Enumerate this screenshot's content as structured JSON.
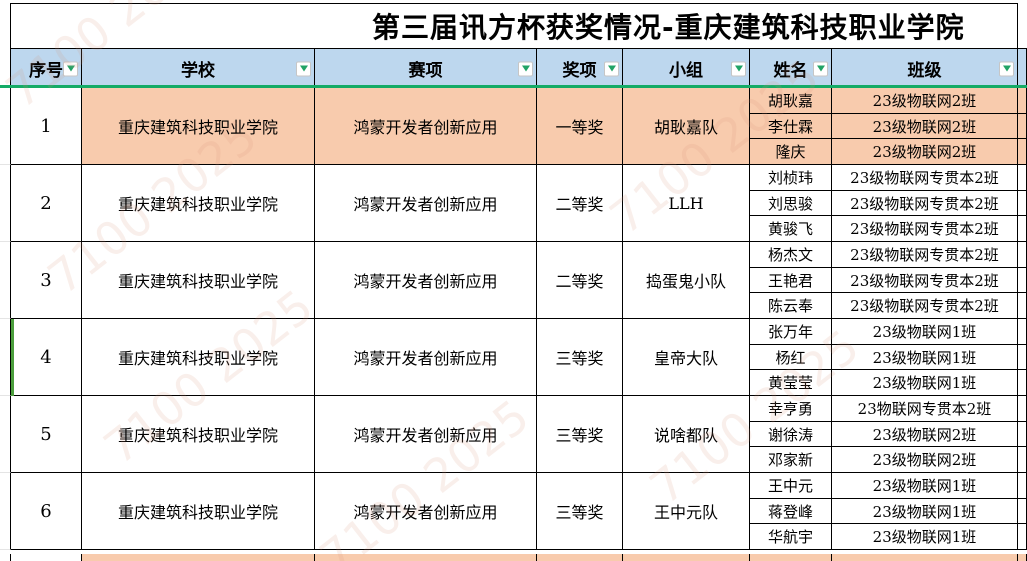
{
  "title": "第三届讯方杯获奖情况-重庆建筑科技职业学院",
  "header": {
    "columns": [
      "序号",
      "学校",
      "赛项",
      "奖项",
      "小组",
      "姓名",
      "班级"
    ]
  },
  "rows": [
    {
      "index": "1",
      "school": "重庆建筑科技职业学院",
      "event": "鸿蒙开发者创新应用",
      "award": "一等奖",
      "group": "胡耿嘉队",
      "highlight": true,
      "members": [
        {
          "name": "胡耿嘉",
          "class": "23级物联网2班"
        },
        {
          "name": "李仕霖",
          "class": "23级物联网2班"
        },
        {
          "name": "隆庆",
          "class": "23级物联网2班"
        }
      ]
    },
    {
      "index": "2",
      "school": "重庆建筑科技职业学院",
      "event": "鸿蒙开发者创新应用",
      "award": "二等奖",
      "group": "LLH",
      "highlight": false,
      "members": [
        {
          "name": "刘桢玮",
          "class": "23级物联网专贯本2班"
        },
        {
          "name": "刘思骏",
          "class": "23级物联网专贯本2班"
        },
        {
          "name": "黄骏飞",
          "class": "23级物联网专贯本2班"
        }
      ]
    },
    {
      "index": "3",
      "school": "重庆建筑科技职业学院",
      "event": "鸿蒙开发者创新应用",
      "award": "二等奖",
      "group": "捣蛋鬼小队",
      "highlight": false,
      "members": [
        {
          "name": "杨杰文",
          "class": "23级物联网专贯本2班"
        },
        {
          "name": "王艳君",
          "class": "23级物联网专贯本2班"
        },
        {
          "name": "陈云奉",
          "class": "23级物联网专贯本2班"
        }
      ]
    },
    {
      "index": "4",
      "school": "重庆建筑科技职业学院",
      "event": "鸿蒙开发者创新应用",
      "award": "三等奖",
      "group": "皇帝大队",
      "highlight": false,
      "members": [
        {
          "name": "张万年",
          "class": "23级物联网1班"
        },
        {
          "name": "杨红",
          "class": "23级物联网1班"
        },
        {
          "name": "黄莹莹",
          "class": "23级物联网1班"
        }
      ]
    },
    {
      "index": "5",
      "school": "重庆建筑科技职业学院",
      "event": "鸿蒙开发者创新应用",
      "award": "三等奖",
      "group": "说啥都队",
      "highlight": false,
      "members": [
        {
          "name": "幸亨勇",
          "class": "23物联网专贯本2班"
        },
        {
          "name": "谢徐涛",
          "class": "23级物联网2班"
        },
        {
          "name": "邓家新",
          "class": "23级物联网2班"
        }
      ]
    },
    {
      "index": "6",
      "school": "重庆建筑科技职业学院",
      "event": "鸿蒙开发者创新应用",
      "award": "三等奖",
      "group": "王中元队",
      "highlight": false,
      "members": [
        {
          "name": "王中元",
          "class": "23级物联网1班"
        },
        {
          "name": "蒋登峰",
          "class": "23级物联网1班"
        },
        {
          "name": "华航宇",
          "class": "23级物联网1班"
        }
      ]
    }
  ],
  "watermark": {
    "text": "7100 2025"
  },
  "colors": {
    "header_bg": "#BDD7EE",
    "highlight_bg": "#F8CBAD",
    "filter_arrow_green": "#21A366",
    "header_underline_green": "#14AB66",
    "selection_green": "#4B9E3C",
    "grid_black": "#000000"
  }
}
